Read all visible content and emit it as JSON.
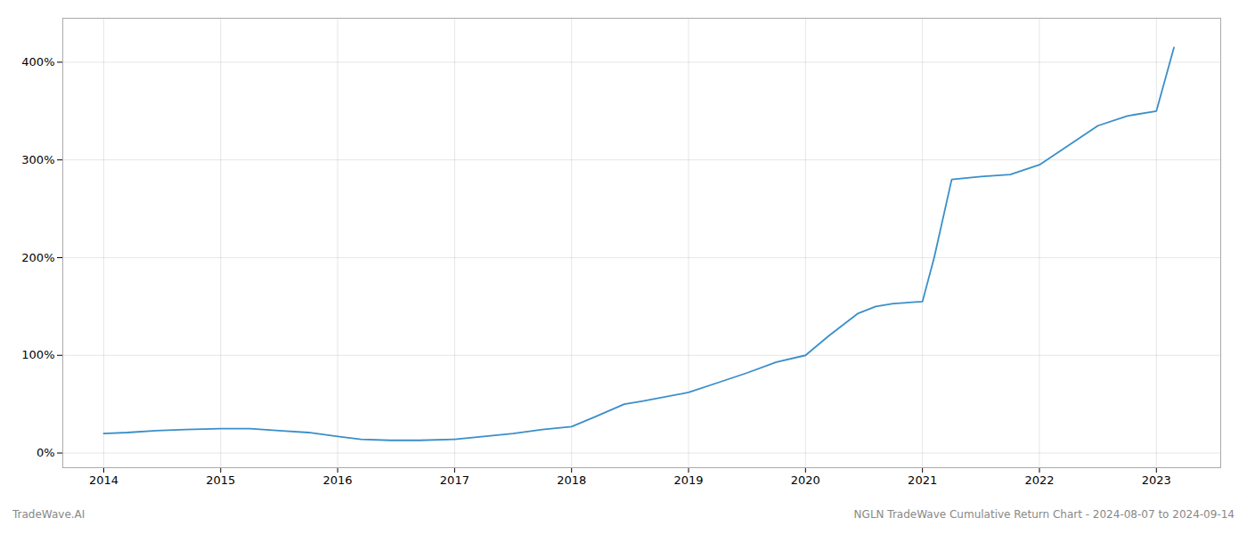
{
  "chart_data": {
    "type": "line",
    "x": [
      2014.0,
      2014.2,
      2014.45,
      2014.7,
      2015.0,
      2015.25,
      2015.5,
      2015.75,
      2016.0,
      2016.2,
      2016.45,
      2016.7,
      2017.0,
      2017.25,
      2017.5,
      2017.75,
      2018.0,
      2018.2,
      2018.45,
      2018.6,
      2019.0,
      2019.25,
      2019.5,
      2019.75,
      2020.0,
      2020.2,
      2020.45,
      2020.6,
      2020.75,
      2021.0,
      2021.1,
      2021.25,
      2021.5,
      2021.75,
      2022.0,
      2022.25,
      2022.5,
      2022.75,
      2023.0,
      2023.15
    ],
    "values": [
      20,
      21,
      23,
      24,
      25,
      25,
      23,
      21,
      17,
      14,
      13,
      13,
      14,
      17,
      20,
      24,
      27,
      37,
      50,
      53,
      62,
      72,
      82,
      93,
      100,
      120,
      143,
      150,
      153,
      155,
      200,
      280,
      283,
      285,
      295,
      315,
      335,
      345,
      350,
      415
    ],
    "color": "#3a8fc9",
    "xlim": [
      2013.65,
      2023.55
    ],
    "xticks": [
      2014,
      2015,
      2016,
      2017,
      2018,
      2019,
      2020,
      2021,
      2022,
      2023
    ],
    "ylim": [
      -15,
      445
    ],
    "yticks": [
      {
        "value": 0,
        "label": "0%"
      },
      {
        "value": 100,
        "label": "100%"
      },
      {
        "value": 200,
        "label": "200%"
      },
      {
        "value": 300,
        "label": "300%"
      },
      {
        "value": 400,
        "label": "400%"
      }
    ],
    "grid": true,
    "annotations": [
      "TradeWave.AI",
      "NGLN TradeWave Cumulative Return Chart - 2024-08-07 to 2024-09-14"
    ]
  }
}
